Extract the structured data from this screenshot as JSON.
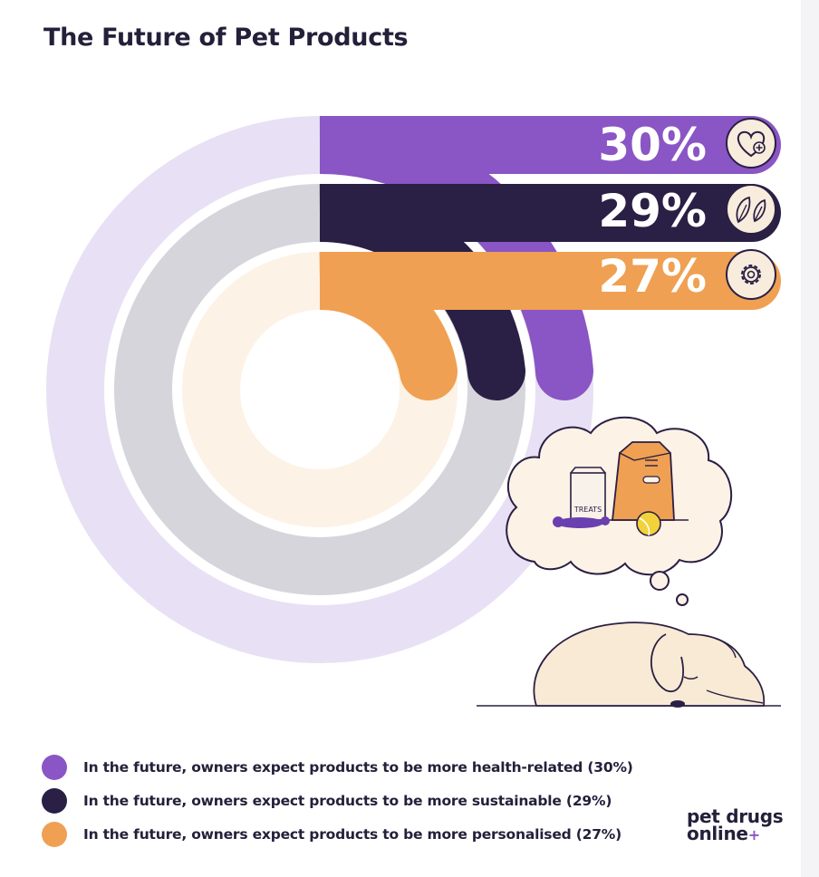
{
  "title": "The Future of Pet Products",
  "chart_data": {
    "type": "radial-bar",
    "title": "The Future of Pet Products",
    "series": [
      {
        "name": "In the future, owners expect products to be more health-related (30%)",
        "value": 30,
        "label": "30%",
        "color": "#8a55c4",
        "icon": "heart-plus-icon"
      },
      {
        "name": "In the future, owners expect products to be more sustainable (29%)",
        "value": 29,
        "label": "29%",
        "color": "#2a1f44",
        "icon": "leaves-icon"
      },
      {
        "name": "In the future, owners expect products to be more personalised (27%)",
        "value": 27,
        "label": "27%",
        "color": "#f0a052",
        "icon": "gear-icon"
      }
    ],
    "track_colors": [
      "#e8e0f4",
      "#d6d5dc",
      "#fdf2e6"
    ]
  },
  "illustration": {
    "treats_bag_text": "TREATS"
  },
  "logo": {
    "line1": "pet drugs",
    "line2": "online",
    "mark": "+"
  }
}
